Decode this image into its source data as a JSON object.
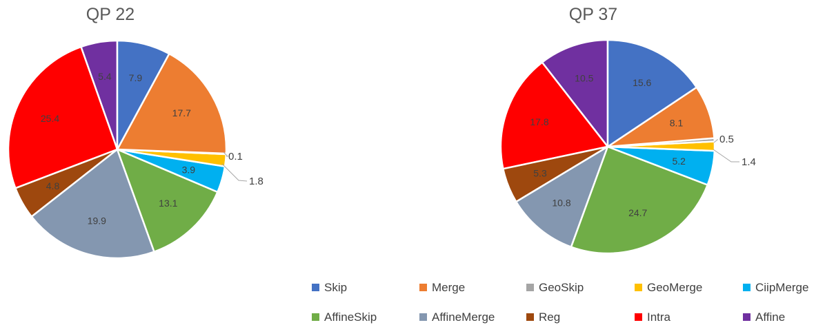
{
  "chart_data": [
    {
      "type": "pie",
      "title": "QP 22",
      "categories": [
        "Skip",
        "Merge",
        "GeoSkip",
        "GeoMerge",
        "CiipMerge",
        "AffineSkip",
        "AffineMerge",
        "Reg",
        "Intra",
        "Affine"
      ],
      "values": [
        7.9,
        17.7,
        0.1,
        1.8,
        3.9,
        13.1,
        19.9,
        4.8,
        25.4,
        5.4
      ],
      "labels": [
        "7.9",
        "17.7",
        "0.1",
        "1.8",
        "3.9",
        "13.1",
        "19.9",
        "4.8",
        "25.4",
        "5.4"
      ]
    },
    {
      "type": "pie",
      "title": "QP 37",
      "categories": [
        "Skip",
        "Merge",
        "GeoSkip",
        "GeoMerge",
        "CiipMerge",
        "AffineSkip",
        "AffineMerge",
        "Reg",
        "Intra",
        "Affine"
      ],
      "values": [
        15.6,
        8.1,
        0.5,
        1.4,
        5.2,
        24.7,
        10.8,
        5.3,
        17.8,
        10.5
      ],
      "labels": [
        "15.6",
        "8.1",
        "0.5",
        "1.4",
        "5.2",
        "24.7",
        "10.8",
        "5.3",
        "17.8",
        "10.5"
      ]
    }
  ],
  "legend": {
    "placement": "bottom-right",
    "items": [
      {
        "name": "Skip",
        "color": "#4472C4"
      },
      {
        "name": "Merge",
        "color": "#ED7D31"
      },
      {
        "name": "GeoSkip",
        "color": "#A5A5A5"
      },
      {
        "name": "GeoMerge",
        "color": "#FFC000"
      },
      {
        "name": "CiipMerge",
        "color": "#00B0F0"
      },
      {
        "name": "AffineSkip",
        "color": "#70AD47"
      },
      {
        "name": "AffineMerge",
        "color": "#8497B0"
      },
      {
        "name": "Reg",
        "color": "#9E480E"
      },
      {
        "name": "Intra",
        "color": "#FF0000"
      },
      {
        "name": "Affine",
        "color": "#7030A0"
      }
    ]
  }
}
